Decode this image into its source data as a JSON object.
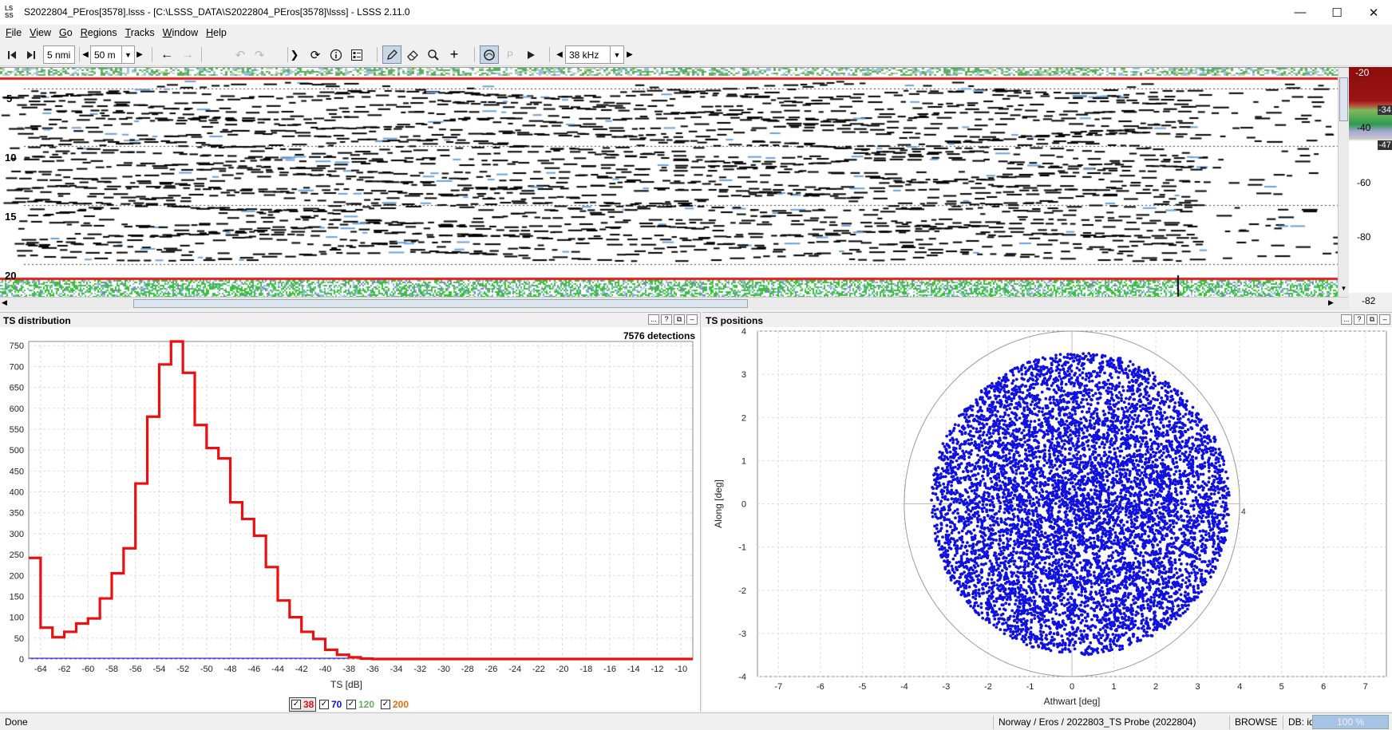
{
  "window": {
    "logo_top": "LS",
    "logo_bottom": "SS",
    "title": "S2022804_PEros[3578].lsss - [C:\\LSSS_DATA\\S2022804_PEros[3578]\\lsss] - LSSS 2.11.0",
    "minimize_glyph": "—",
    "maximize_glyph": "☐",
    "close_glyph": "✕"
  },
  "menu": [
    {
      "key": "F",
      "rest": "ile"
    },
    {
      "key": "V",
      "rest": "iew"
    },
    {
      "key": "G",
      "rest": "o"
    },
    {
      "key": "R",
      "rest": "egions"
    },
    {
      "key": "T",
      "rest": "racks"
    },
    {
      "key": "W",
      "rest": "indow"
    },
    {
      "key": "H",
      "rest": "elp"
    }
  ],
  "toolbar": {
    "distance_value": "5 nmi",
    "range_value": "50 m",
    "frequency_value": "38 kHz",
    "icons": [
      "step-back-icon",
      "step-forward-icon",
      "arrow-left-icon",
      "arrow-right-icon",
      "undo-icon",
      "redo-icon",
      "play-forward-icon",
      "refresh-icon",
      "info-icon",
      "checklist-icon",
      "pencil-icon",
      "eraser-icon",
      "zoom-icon",
      "crosshair-icon",
      "circle-select-icon",
      "p-icon",
      "play-icon"
    ],
    "p_label": "P"
  },
  "echogram": {
    "depth_labels": [
      "5",
      "10",
      "15",
      "20"
    ],
    "colorbar_labels": [
      "-20",
      "-34",
      "-40",
      "-47",
      "-60",
      "-80",
      "-82"
    ]
  },
  "ts_distribution": {
    "title": "TS distribution",
    "detections": "7576 detections",
    "legend": [
      {
        "label": "38",
        "color": "#e81010",
        "checked": true
      },
      {
        "label": "70",
        "color": "#1010d0",
        "checked": true
      },
      {
        "label": "120",
        "color": "#60b060",
        "checked": true
      },
      {
        "label": "200",
        "color": "#e07010",
        "checked": true
      }
    ]
  },
  "ts_positions": {
    "title": "TS positions",
    "circle_label": "4"
  },
  "panel_buttons": [
    "...",
    "?",
    "⧉",
    "–"
  ],
  "chart_data": [
    {
      "type": "bar",
      "xlabel": "TS [dB]",
      "ylabel": "",
      "xlim": [
        -65,
        -9
      ],
      "ylim": [
        0,
        760
      ],
      "x_ticks": [
        -64,
        -62,
        -60,
        -58,
        -56,
        -54,
        -52,
        -50,
        -48,
        -46,
        -44,
        -42,
        -40,
        -38,
        -36,
        -34,
        -32,
        -30,
        -28,
        -26,
        -24,
        -22,
        -20,
        -18,
        -16,
        -14,
        -12,
        -10
      ],
      "y_ticks": [
        0,
        50,
        100,
        150,
        200,
        250,
        300,
        350,
        400,
        450,
        500,
        550,
        600,
        650,
        700,
        750
      ],
      "bin_width": 1,
      "series": [
        {
          "name": "38",
          "color": "#e81010",
          "x": [
            -65,
            -64,
            -63,
            -62,
            -61,
            -60,
            -59,
            -58,
            -57,
            -56,
            -55,
            -54,
            -53,
            -52,
            -51,
            -50,
            -49,
            -48,
            -47,
            -46,
            -45,
            -44,
            -43,
            -42,
            -41,
            -40,
            -39,
            -38,
            -37,
            -36,
            -35,
            -34,
            -33,
            -32,
            -31,
            -30,
            -29,
            -28,
            -27,
            -26,
            -25,
            -24,
            -23,
            -22,
            -21,
            -20,
            -19,
            -18,
            -17,
            -16,
            -15,
            -14,
            -13,
            -12,
            -11,
            -10
          ],
          "values": [
            242,
            75,
            52,
            65,
            85,
            97,
            145,
            205,
            265,
            420,
            580,
            705,
            775,
            685,
            560,
            505,
            480,
            375,
            335,
            295,
            220,
            140,
            100,
            65,
            48,
            22,
            10,
            4,
            1,
            0,
            0,
            0,
            0,
            0,
            0,
            0,
            0,
            0,
            0,
            0,
            0,
            0,
            0,
            0,
            0,
            0,
            0,
            0,
            0,
            0,
            0,
            0,
            0,
            0,
            0,
            0
          ]
        }
      ]
    },
    {
      "type": "scatter",
      "xlabel": "Athwart [deg]",
      "ylabel": "Along [deg]",
      "xlim": [
        -7.5,
        7.5
      ],
      "ylim": [
        -4,
        4
      ],
      "x_ticks": [
        -7,
        -6,
        -5,
        -4,
        -3,
        -2,
        -1,
        0,
        1,
        2,
        3,
        4,
        5,
        6,
        7
      ],
      "y_ticks": [
        -4,
        -3,
        -2,
        -1,
        0,
        1,
        2,
        3,
        4
      ],
      "circle_radius": 4,
      "point_region_radius": 3.5,
      "series": [
        {
          "name": "38",
          "color": "#1010e0",
          "count": 7576
        }
      ]
    }
  ],
  "status": {
    "left": "Done",
    "survey": "Norway / Eros / 2022803_TS Probe (2022804)",
    "mode": "BROWSE",
    "db": "DB: idle",
    "progress": "100 %"
  }
}
